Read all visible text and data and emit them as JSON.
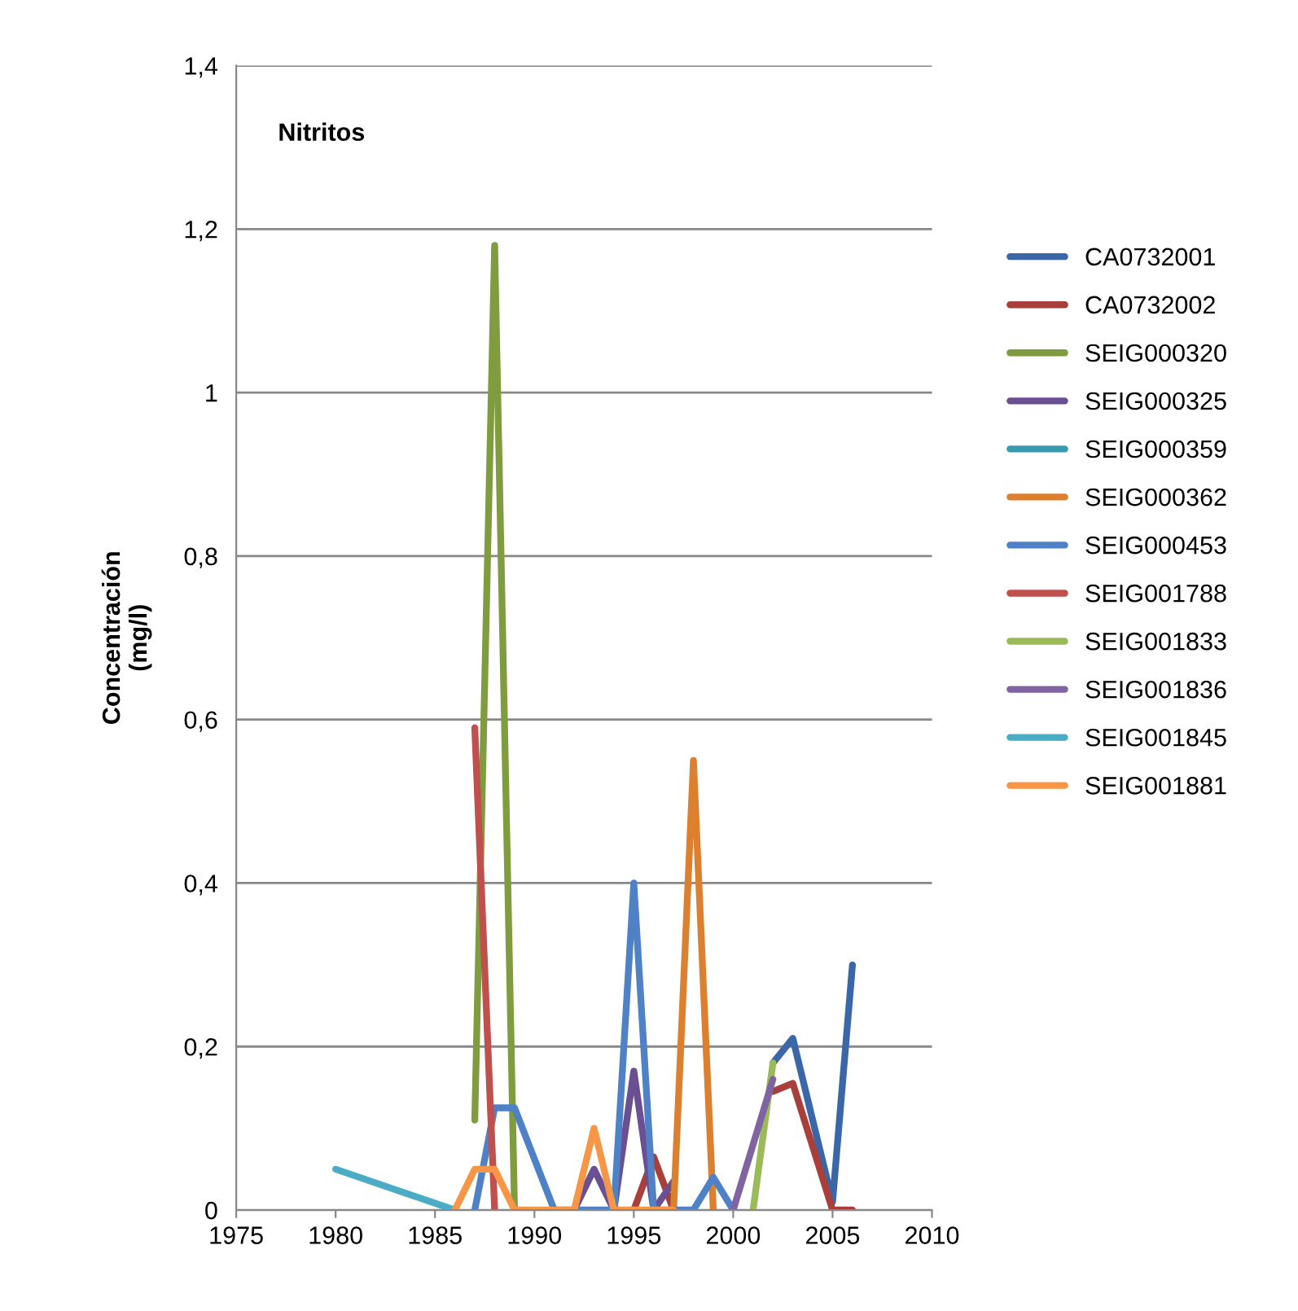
{
  "chart_data": {
    "type": "line",
    "title": "Nitritos",
    "ylabel": "Concentración\n(mg/l)",
    "xlim": [
      1975,
      2010
    ],
    "xticks": [
      1975,
      1980,
      1985,
      1990,
      1995,
      2000,
      2005,
      2010
    ],
    "ylim": [
      0,
      1.4
    ],
    "yticks": [
      0,
      {
        "value": 0.2,
        "label": "0,2"
      },
      {
        "value": 0.4,
        "label": "0,4"
      },
      {
        "value": 0.6,
        "label": "0,6"
      },
      {
        "value": 0.8,
        "label": "0,8"
      },
      1,
      {
        "value": 1.2,
        "label": "1,2"
      },
      {
        "value": 1.4,
        "label": "1,4"
      }
    ],
    "grid": "y",
    "legend": "right",
    "marker": "none",
    "series": [
      {
        "name": "CA0732001",
        "color": "#3a67a8",
        "x": [
          2002,
          2003,
          2005,
          2006
        ],
        "values": [
          0.18,
          0.21,
          0.01,
          0.3
        ]
      },
      {
        "name": "CA0732002",
        "color": "#a83f3b",
        "x": [
          1995,
          1996,
          1997,
          2000,
          2002,
          2003,
          2005,
          2006
        ],
        "values": [
          0,
          0.065,
          0,
          null,
          0.145,
          0.155,
          0,
          0
        ]
      },
      {
        "name": "SEIG000320",
        "color": "#7f9d3e",
        "x": [
          1987,
          1988,
          1989
        ],
        "values": [
          0.11,
          1.18,
          0
        ]
      },
      {
        "name": "SEIG000325",
        "color": "#6a4f93",
        "x": [
          1992,
          1993,
          1994,
          1995,
          1996,
          1997
        ],
        "values": [
          0,
          0.05,
          0,
          0.17,
          0,
          0.035
        ]
      },
      {
        "name": "SEIG000359",
        "color": "#3a9ab0"
      },
      {
        "name": "SEIG000362",
        "color": "#dc7f2f",
        "x": [
          1997,
          1998,
          1999
        ],
        "values": [
          0,
          0.55,
          0
        ]
      },
      {
        "name": "SEIG000453",
        "color": "#4f81c7",
        "x": [
          1987,
          1988,
          1989,
          1991,
          1994,
          1995,
          1996,
          1998,
          1999,
          2000
        ],
        "values": [
          0,
          0.125,
          0.125,
          0,
          0,
          0.4,
          0,
          0,
          0.04,
          0
        ]
      },
      {
        "name": "SEIG001788",
        "color": "#c0504d",
        "x": [
          1987,
          1988
        ],
        "values": [
          0.59,
          0
        ]
      },
      {
        "name": "SEIG001833",
        "color": "#9bbb59",
        "x": [
          2001,
          2002
        ],
        "values": [
          0,
          0.18
        ]
      },
      {
        "name": "SEIG001836",
        "color": "#8064a2",
        "x": [
          2000,
          2002
        ],
        "values": [
          0,
          0.16
        ]
      },
      {
        "name": "SEIG001845",
        "color": "#4bacc6",
        "x": [
          1980,
          1986
        ],
        "values": [
          0.05,
          0
        ]
      },
      {
        "name": "SEIG001881",
        "color": "#f79646",
        "x": [
          1986,
          1987,
          1988,
          1989,
          1992,
          1993,
          1994,
          1997
        ],
        "values": [
          0,
          0.05,
          0.05,
          0,
          0,
          0.1,
          0,
          0
        ]
      }
    ]
  }
}
